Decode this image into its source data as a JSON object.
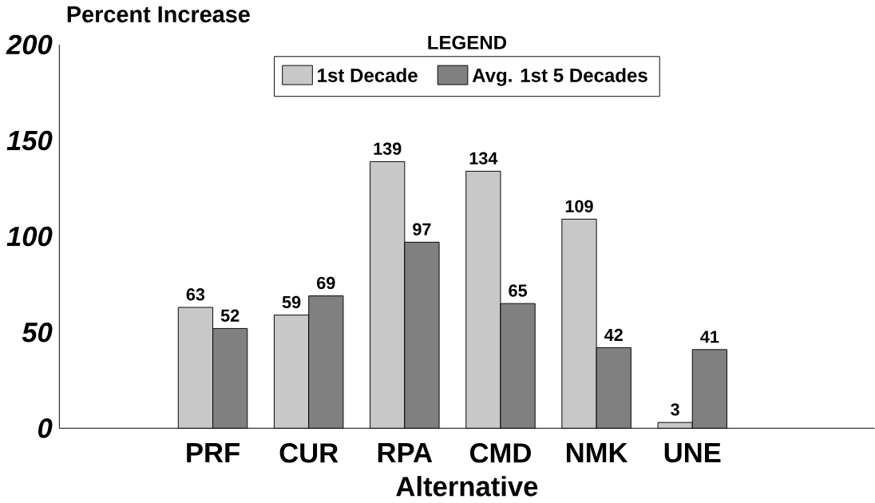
{
  "chart_data": {
    "type": "bar",
    "ylabel": "Percent Increase",
    "xlabel": "Alternative",
    "legend_title": "LEGEND",
    "categories": [
      "PRF",
      "CUR",
      "RPA",
      "CMD",
      "NMK",
      "UNE"
    ],
    "series": [
      {
        "name": "1st Decade",
        "color": "#c8c8c8",
        "values": [
          63,
          59,
          139,
          134,
          109,
          3
        ]
      },
      {
        "name": "Avg. 1st 5 Decades",
        "color": "#808080",
        "values": [
          52,
          69,
          97,
          65,
          42,
          41
        ]
      }
    ],
    "ylim": [
      0,
      200
    ],
    "yticks": [
      0,
      50,
      100,
      150,
      200
    ],
    "data_labels": true,
    "legend": "top",
    "grid": false
  }
}
